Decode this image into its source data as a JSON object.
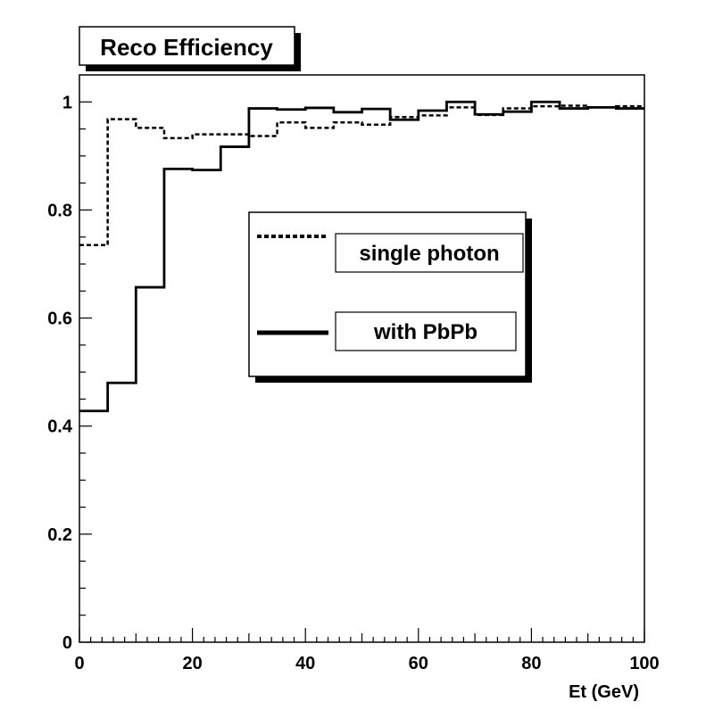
{
  "chart_data": {
    "type": "line",
    "title": "Reco Efficiency",
    "xlabel": "Et (GeV)",
    "ylabel": "",
    "xlim": [
      0,
      100
    ],
    "ylim": [
      0,
      1.05
    ],
    "grid": false,
    "legend_position": "center-right",
    "x_ticks": [
      0,
      20,
      40,
      60,
      80,
      100
    ],
    "y_ticks": [
      0,
      0.2,
      0.4,
      0.6,
      0.8,
      1
    ],
    "x_tick_labels": [
      "0",
      "20",
      "40",
      "60",
      "80",
      "100"
    ],
    "y_tick_labels": [
      "0",
      "0.2",
      "0.4",
      "0.6",
      "0.8",
      "1"
    ],
    "bin_edges": [
      0,
      5,
      10,
      15,
      20,
      25,
      30,
      35,
      40,
      45,
      50,
      55,
      60,
      65,
      70,
      75,
      80,
      85,
      90,
      95,
      100
    ],
    "series": [
      {
        "name": "single photon",
        "style": "dashed",
        "values": [
          0.735,
          0.968,
          0.952,
          0.933,
          0.94,
          0.94,
          0.937,
          0.962,
          0.952,
          0.962,
          0.958,
          0.972,
          0.975,
          0.99,
          0.976,
          0.988,
          0.992,
          0.993,
          0.99,
          0.992
        ]
      },
      {
        "name": "with PbPb",
        "style": "solid",
        "values": [
          0.428,
          0.48,
          0.657,
          0.876,
          0.874,
          0.917,
          0.988,
          0.986,
          0.989,
          0.981,
          0.987,
          0.967,
          0.984,
          1.0,
          0.977,
          0.982,
          1.0,
          0.988,
          0.99,
          0.988
        ]
      }
    ]
  },
  "colors": {
    "line": "#000000",
    "background": "#ffffff",
    "shadow": "#000000"
  }
}
